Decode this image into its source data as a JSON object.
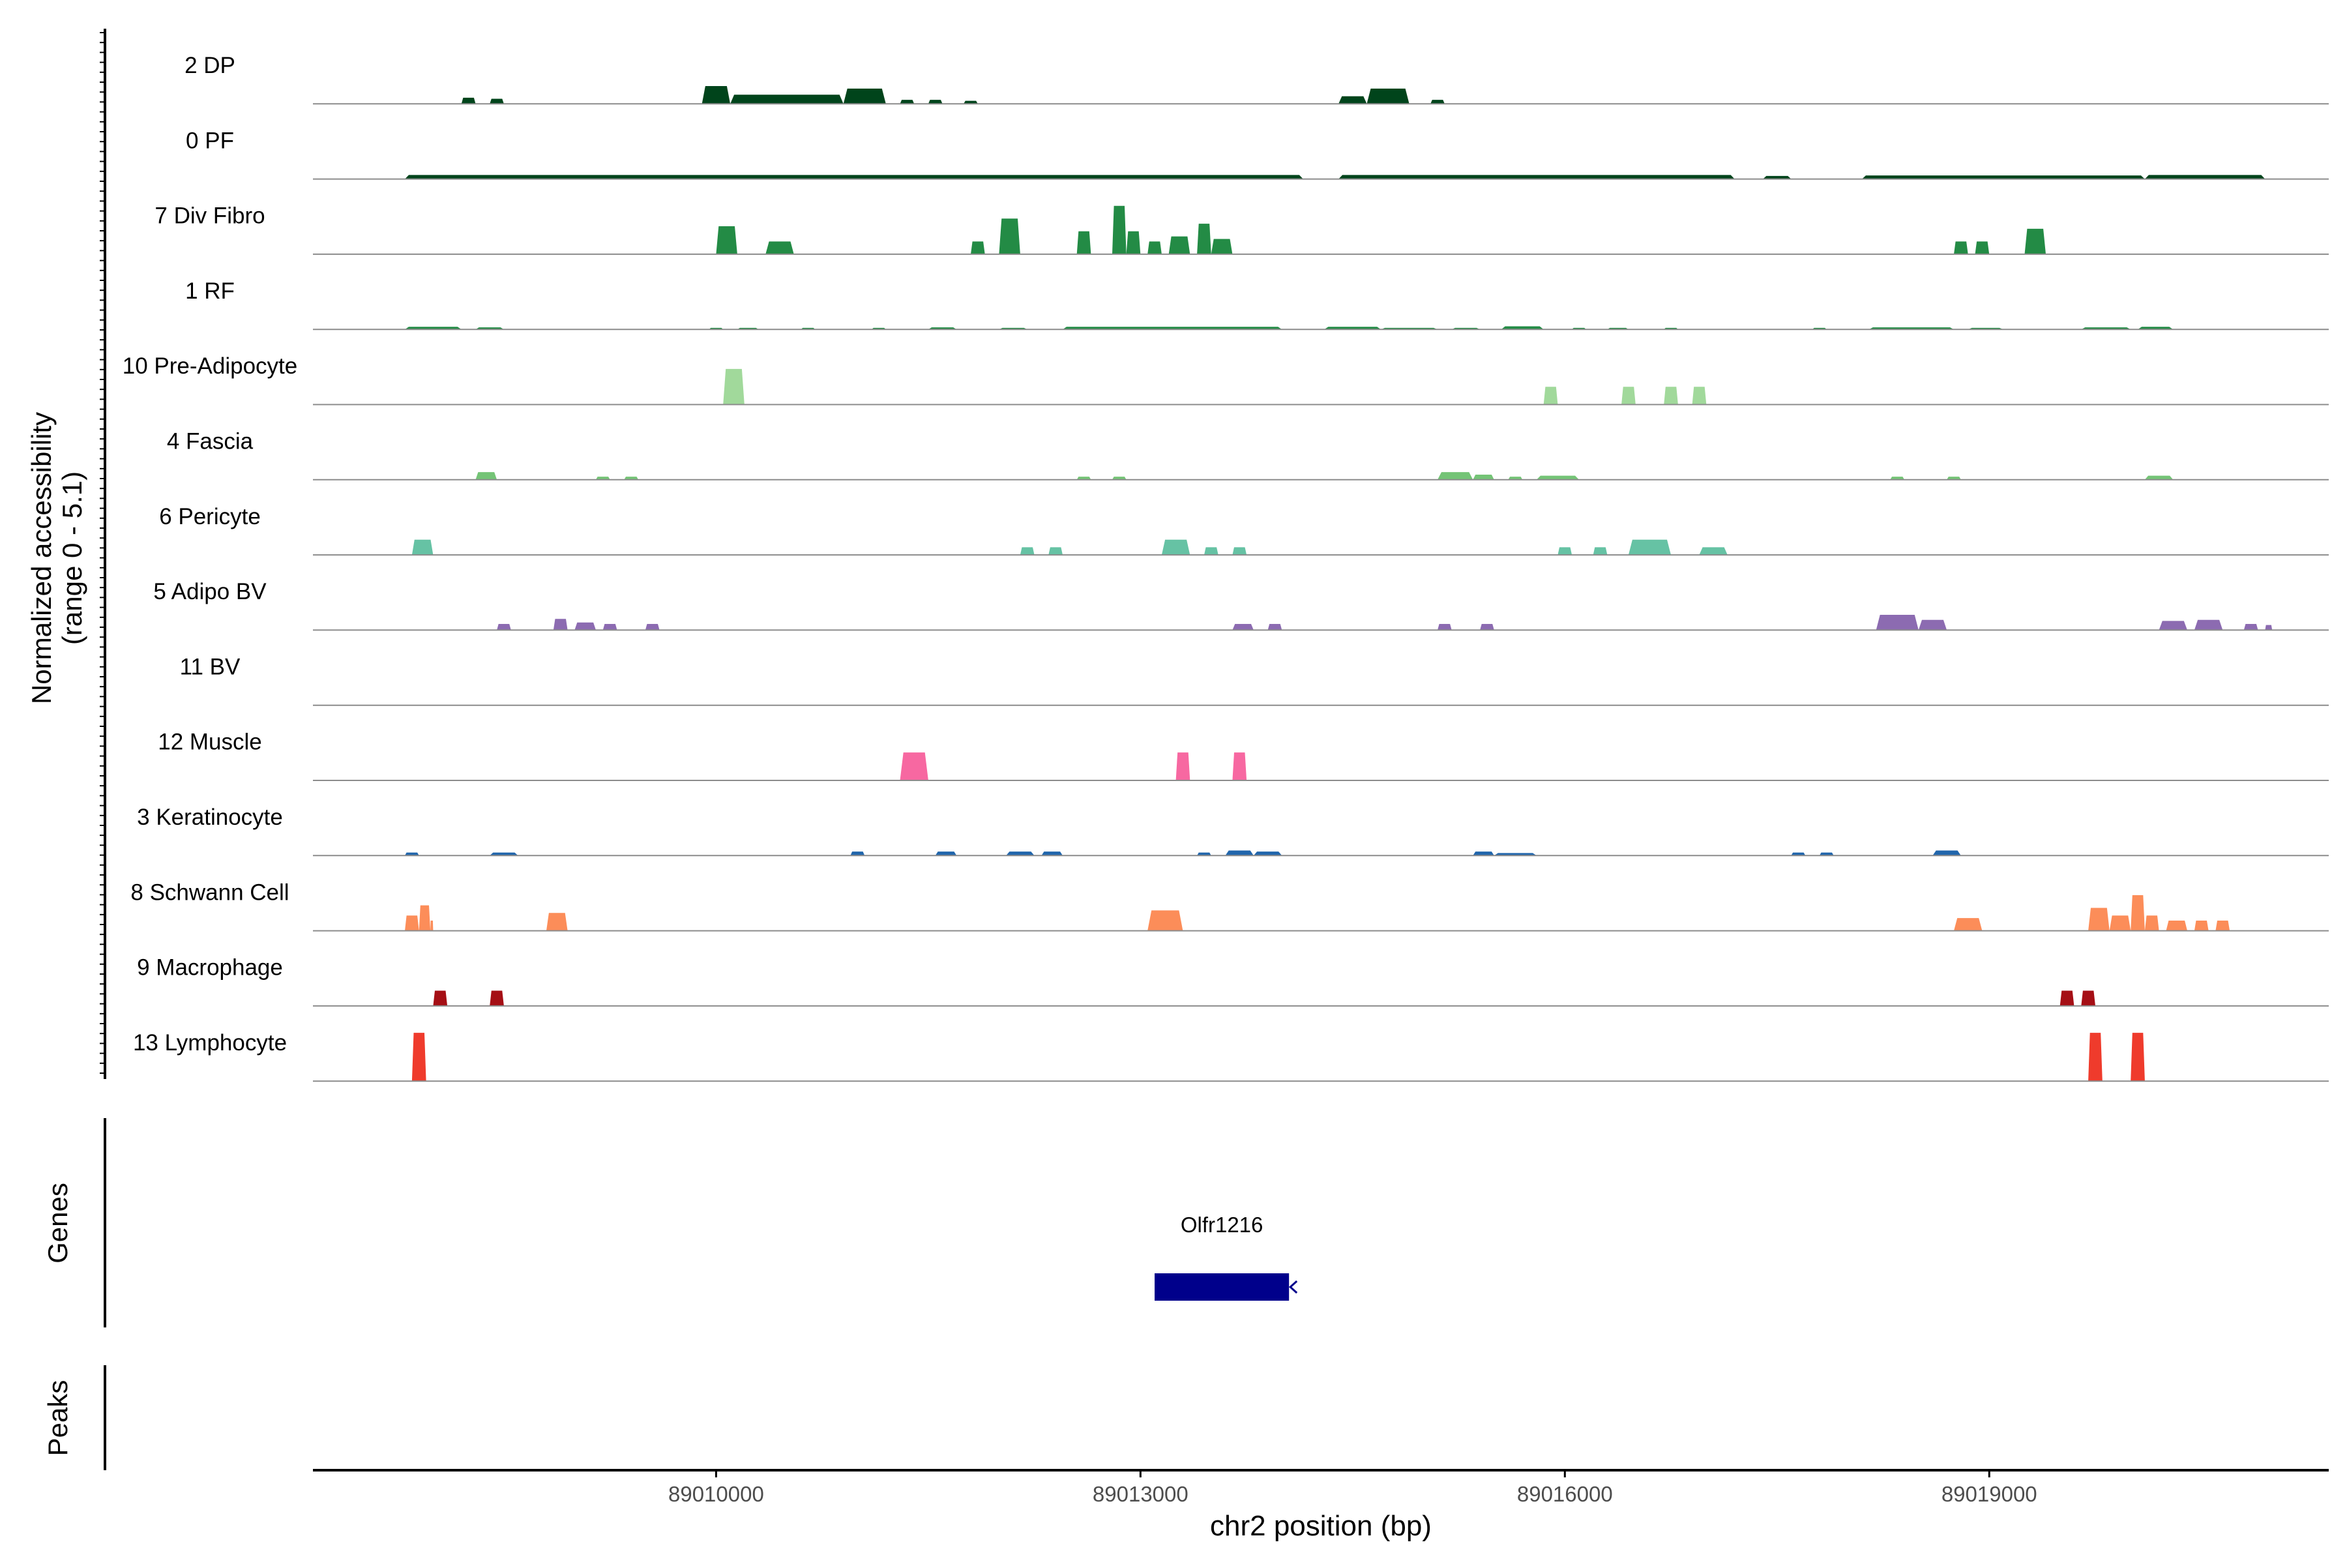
{
  "chart_data": {
    "type": "area",
    "subtype": "genome-browser coverage tracks",
    "y_axis": {
      "label_line1": "Normalized accessibility",
      "label_line2": "(range 0 - 5.1)",
      "range": [
        0,
        5.1
      ]
    },
    "x_axis": {
      "label": "chr2 position (bp)",
      "range": [
        89007150,
        89021400
      ],
      "ticks": [
        89010000,
        89013000,
        89016000,
        89019000
      ],
      "tick_labels": [
        "89010000",
        "89013000",
        "89016000",
        "89019000"
      ]
    },
    "panels": {
      "genes_label": "Genes",
      "peaks_label": "Peaks"
    },
    "gene": {
      "name": "Olfr1216",
      "start": 89013100,
      "end": 89014050,
      "strand": "-",
      "color": "#00008b"
    },
    "tracks": [
      {
        "name": "2 DP",
        "color": "#00441b",
        "segments": [
          {
            "start": 89008200,
            "end": 89008300,
            "h": 0.12
          },
          {
            "start": 89008400,
            "end": 89008500,
            "h": 0.1
          },
          {
            "start": 89009900,
            "end": 89010100,
            "h": 0.35
          },
          {
            "start": 89010100,
            "end": 89010900,
            "h": 0.18
          },
          {
            "start": 89010900,
            "end": 89011200,
            "h": 0.3
          },
          {
            "start": 89011300,
            "end": 89011400,
            "h": 0.08
          },
          {
            "start": 89011500,
            "end": 89011600,
            "h": 0.08
          },
          {
            "start": 89011750,
            "end": 89011850,
            "h": 0.06
          },
          {
            "start": 89014400,
            "end": 89014600,
            "h": 0.15
          },
          {
            "start": 89014600,
            "end": 89014900,
            "h": 0.3
          },
          {
            "start": 89015050,
            "end": 89015150,
            "h": 0.08
          }
        ]
      },
      {
        "name": "0 PF",
        "color": "#00441b",
        "segments": [
          {
            "start": 89007800,
            "end": 89014150,
            "h": 0.08
          },
          {
            "start": 89014400,
            "end": 89017200,
            "h": 0.08
          },
          {
            "start": 89017400,
            "end": 89017600,
            "h": 0.06
          },
          {
            "start": 89018100,
            "end": 89020100,
            "h": 0.07
          },
          {
            "start": 89020100,
            "end": 89020950,
            "h": 0.08
          }
        ]
      },
      {
        "name": "7 Div Fibro",
        "color": "#238b45",
        "segments": [
          {
            "start": 89010000,
            "end": 89010150,
            "h": 0.55
          },
          {
            "start": 89010350,
            "end": 89010550,
            "h": 0.25
          },
          {
            "start": 89011800,
            "end": 89011900,
            "h": 0.25
          },
          {
            "start": 89012000,
            "end": 89012150,
            "h": 0.7
          },
          {
            "start": 89012550,
            "end": 89012650,
            "h": 0.45
          },
          {
            "start": 89012800,
            "end": 89012900,
            "h": 0.95
          },
          {
            "start": 89012900,
            "end": 89013000,
            "h": 0.45
          },
          {
            "start": 89013050,
            "end": 89013150,
            "h": 0.25
          },
          {
            "start": 89013200,
            "end": 89013350,
            "h": 0.35
          },
          {
            "start": 89013400,
            "end": 89013500,
            "h": 0.6
          },
          {
            "start": 89013500,
            "end": 89013650,
            "h": 0.3
          },
          {
            "start": 89018750,
            "end": 89018850,
            "h": 0.25
          },
          {
            "start": 89018900,
            "end": 89019000,
            "h": 0.25
          },
          {
            "start": 89019250,
            "end": 89019400,
            "h": 0.5
          }
        ]
      },
      {
        "name": "1 RF",
        "color": "#238b45",
        "segments": [
          {
            "start": 89007800,
            "end": 89008200,
            "h": 0.05
          },
          {
            "start": 89008300,
            "end": 89008500,
            "h": 0.04
          },
          {
            "start": 89009950,
            "end": 89010050,
            "h": 0.03
          },
          {
            "start": 89010150,
            "end": 89010300,
            "h": 0.03
          },
          {
            "start": 89010600,
            "end": 89010700,
            "h": 0.03
          },
          {
            "start": 89011100,
            "end": 89011200,
            "h": 0.03
          },
          {
            "start": 89011500,
            "end": 89011700,
            "h": 0.04
          },
          {
            "start": 89012000,
            "end": 89012200,
            "h": 0.03
          },
          {
            "start": 89012450,
            "end": 89014000,
            "h": 0.05
          },
          {
            "start": 89014300,
            "end": 89014700,
            "h": 0.05
          },
          {
            "start": 89014700,
            "end": 89015100,
            "h": 0.03
          },
          {
            "start": 89015200,
            "end": 89015400,
            "h": 0.03
          },
          {
            "start": 89015550,
            "end": 89015850,
            "h": 0.06
          },
          {
            "start": 89016050,
            "end": 89016150,
            "h": 0.03
          },
          {
            "start": 89016300,
            "end": 89016450,
            "h": 0.03
          },
          {
            "start": 89016700,
            "end": 89016800,
            "h": 0.03
          },
          {
            "start": 89017750,
            "end": 89017850,
            "h": 0.03
          },
          {
            "start": 89018150,
            "end": 89018750,
            "h": 0.04
          },
          {
            "start": 89018850,
            "end": 89019100,
            "h": 0.03
          },
          {
            "start": 89019650,
            "end": 89020000,
            "h": 0.04
          },
          {
            "start": 89020050,
            "end": 89020300,
            "h": 0.05
          }
        ]
      },
      {
        "name": "10 Pre-Adipocyte",
        "color": "#a1d99b",
        "segments": [
          {
            "start": 89010050,
            "end": 89010200,
            "h": 0.7
          },
          {
            "start": 89015850,
            "end": 89015950,
            "h": 0.35
          },
          {
            "start": 89016400,
            "end": 89016500,
            "h": 0.35
          },
          {
            "start": 89016700,
            "end": 89016800,
            "h": 0.35
          },
          {
            "start": 89016900,
            "end": 89017000,
            "h": 0.35
          }
        ]
      },
      {
        "name": "4 Fascia",
        "color": "#74c476",
        "segments": [
          {
            "start": 89008300,
            "end": 89008450,
            "h": 0.15
          },
          {
            "start": 89009150,
            "end": 89009250,
            "h": 0.06
          },
          {
            "start": 89009350,
            "end": 89009450,
            "h": 0.06
          },
          {
            "start": 89012550,
            "end": 89012650,
            "h": 0.06
          },
          {
            "start": 89012800,
            "end": 89012900,
            "h": 0.06
          },
          {
            "start": 89015100,
            "end": 89015350,
            "h": 0.15
          },
          {
            "start": 89015350,
            "end": 89015500,
            "h": 0.1
          },
          {
            "start": 89015600,
            "end": 89015700,
            "h": 0.06
          },
          {
            "start": 89015800,
            "end": 89016100,
            "h": 0.08
          },
          {
            "start": 89018300,
            "end": 89018400,
            "h": 0.06
          },
          {
            "start": 89018700,
            "end": 89018800,
            "h": 0.06
          },
          {
            "start": 89020100,
            "end": 89020300,
            "h": 0.08
          }
        ]
      },
      {
        "name": "6 Pericyte",
        "color": "#66c2a4",
        "segments": [
          {
            "start": 89007850,
            "end": 89008000,
            "h": 0.3
          },
          {
            "start": 89012150,
            "end": 89012250,
            "h": 0.15
          },
          {
            "start": 89012350,
            "end": 89012450,
            "h": 0.15
          },
          {
            "start": 89013150,
            "end": 89013350,
            "h": 0.3
          },
          {
            "start": 89013450,
            "end": 89013550,
            "h": 0.15
          },
          {
            "start": 89013650,
            "end": 89013750,
            "h": 0.15
          },
          {
            "start": 89015950,
            "end": 89016050,
            "h": 0.15
          },
          {
            "start": 89016200,
            "end": 89016300,
            "h": 0.15
          },
          {
            "start": 89016450,
            "end": 89016750,
            "h": 0.3
          },
          {
            "start": 89016950,
            "end": 89017150,
            "h": 0.15
          }
        ]
      },
      {
        "name": "5 Adipo BV",
        "color": "#8c6bb1",
        "segments": [
          {
            "start": 89008450,
            "end": 89008550,
            "h": 0.12
          },
          {
            "start": 89008850,
            "end": 89008950,
            "h": 0.22
          },
          {
            "start": 89009000,
            "end": 89009150,
            "h": 0.15
          },
          {
            "start": 89009200,
            "end": 89009300,
            "h": 0.12
          },
          {
            "start": 89009500,
            "end": 89009600,
            "h": 0.12
          },
          {
            "start": 89013650,
            "end": 89013800,
            "h": 0.12
          },
          {
            "start": 89013900,
            "end": 89014000,
            "h": 0.12
          },
          {
            "start": 89015100,
            "end": 89015200,
            "h": 0.12
          },
          {
            "start": 89015400,
            "end": 89015500,
            "h": 0.12
          },
          {
            "start": 89018200,
            "end": 89018500,
            "h": 0.3
          },
          {
            "start": 89018500,
            "end": 89018700,
            "h": 0.2
          },
          {
            "start": 89020200,
            "end": 89020400,
            "h": 0.18
          },
          {
            "start": 89020450,
            "end": 89020650,
            "h": 0.2
          },
          {
            "start": 89020800,
            "end": 89020900,
            "h": 0.12
          },
          {
            "start": 89020950,
            "end": 89021000,
            "h": 0.1
          }
        ]
      },
      {
        "name": "11 BV",
        "color": "#88419d",
        "segments": []
      },
      {
        "name": "12 Muscle",
        "color": "#f768a1",
        "segments": [
          {
            "start": 89011300,
            "end": 89011500,
            "h": 0.55
          },
          {
            "start": 89013250,
            "end": 89013350,
            "h": 0.55
          },
          {
            "start": 89013650,
            "end": 89013750,
            "h": 0.55
          }
        ]
      },
      {
        "name": "3 Keratinocyte",
        "color": "#2166ac",
        "segments": [
          {
            "start": 89007800,
            "end": 89007900,
            "h": 0.06
          },
          {
            "start": 89008400,
            "end": 89008600,
            "h": 0.06
          },
          {
            "start": 89010950,
            "end": 89011050,
            "h": 0.08
          },
          {
            "start": 89011550,
            "end": 89011700,
            "h": 0.08
          },
          {
            "start": 89012050,
            "end": 89012250,
            "h": 0.08
          },
          {
            "start": 89012300,
            "end": 89012450,
            "h": 0.08
          },
          {
            "start": 89013400,
            "end": 89013500,
            "h": 0.06
          },
          {
            "start": 89013600,
            "end": 89013800,
            "h": 0.1
          },
          {
            "start": 89013800,
            "end": 89014000,
            "h": 0.08
          },
          {
            "start": 89015350,
            "end": 89015500,
            "h": 0.08
          },
          {
            "start": 89015500,
            "end": 89015800,
            "h": 0.05
          },
          {
            "start": 89017600,
            "end": 89017700,
            "h": 0.06
          },
          {
            "start": 89017800,
            "end": 89017900,
            "h": 0.06
          },
          {
            "start": 89018600,
            "end": 89018800,
            "h": 0.1
          }
        ]
      },
      {
        "name": "8 Schwann Cell",
        "color": "#fc8d59",
        "segments": [
          {
            "start": 89007800,
            "end": 89007900,
            "h": 0.3
          },
          {
            "start": 89007900,
            "end": 89007980,
            "h": 0.5
          },
          {
            "start": 89007980,
            "end": 89008000,
            "h": 0.2
          },
          {
            "start": 89008800,
            "end": 89008950,
            "h": 0.35
          },
          {
            "start": 89013050,
            "end": 89013300,
            "h": 0.4
          },
          {
            "start": 89018750,
            "end": 89018950,
            "h": 0.25
          },
          {
            "start": 89019700,
            "end": 89019850,
            "h": 0.45
          },
          {
            "start": 89019850,
            "end": 89020000,
            "h": 0.3
          },
          {
            "start": 89020000,
            "end": 89020100,
            "h": 0.7
          },
          {
            "start": 89020100,
            "end": 89020200,
            "h": 0.3
          },
          {
            "start": 89020250,
            "end": 89020400,
            "h": 0.2
          },
          {
            "start": 89020450,
            "end": 89020550,
            "h": 0.2
          },
          {
            "start": 89020600,
            "end": 89020700,
            "h": 0.2
          }
        ]
      },
      {
        "name": "9 Macrophage",
        "color": "#a50f15",
        "segments": [
          {
            "start": 89008000,
            "end": 89008100,
            "h": 0.3
          },
          {
            "start": 89008400,
            "end": 89008500,
            "h": 0.3
          },
          {
            "start": 89019500,
            "end": 89019600,
            "h": 0.3
          },
          {
            "start": 89019650,
            "end": 89019750,
            "h": 0.3
          }
        ]
      },
      {
        "name": "13 Lymphocyte",
        "color": "#ef3b2c",
        "segments": [
          {
            "start": 89007850,
            "end": 89007950,
            "h": 0.95
          },
          {
            "start": 89019700,
            "end": 89019800,
            "h": 0.95
          },
          {
            "start": 89020000,
            "end": 89020100,
            "h": 0.95
          }
        ]
      }
    ]
  }
}
